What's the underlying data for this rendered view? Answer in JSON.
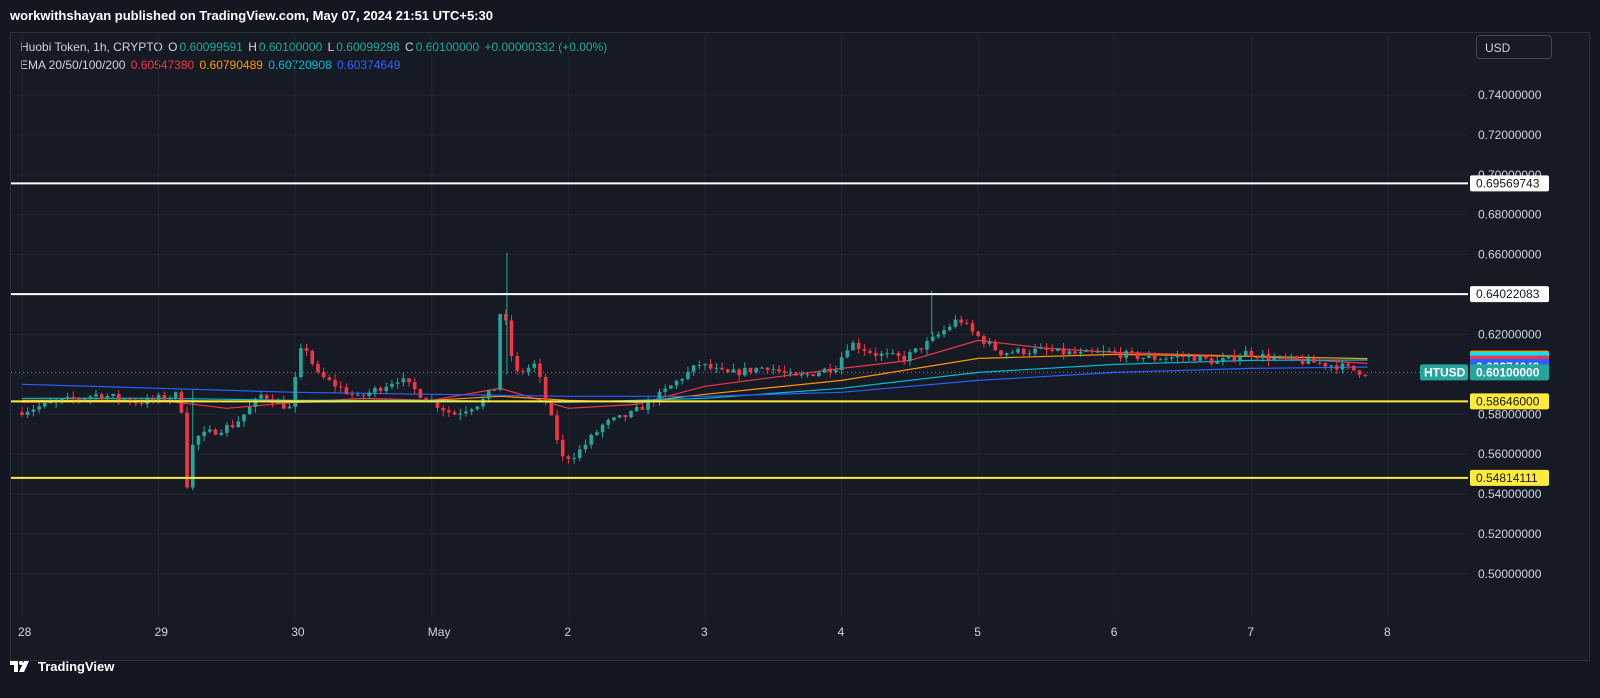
{
  "header": {
    "published_line": "workwithshayan published on TradingView.com, May 07, 2024 21:51 UTC+5:30"
  },
  "legend": {
    "symbol_line": "Huobi Token, 1h, CRYPTO",
    "o_label": "O",
    "o_value": "0.60099591",
    "h_label": "H",
    "h_value": "0.60100000",
    "l_label": "L",
    "l_value": "0.60099298",
    "c_label": "C",
    "c_value": "0.60100000",
    "change": "+0.00000332 (+0.00%)",
    "ema_label": "EMA 20/50/100/200",
    "ema20": "0.60547380",
    "ema50": "0.60790489",
    "ema100": "0.60720908",
    "ema200": "0.60374649"
  },
  "currency_button": "USD",
  "footer": {
    "brand": "TradingView"
  },
  "colors": {
    "background": "#131722",
    "up": "#26a69a",
    "down": "#f23645",
    "ema20": "#f23645",
    "ema50": "#ff9800",
    "ema100": "#00bcd4",
    "ema200": "#2962ff",
    "resistance": "#ffffff",
    "support": "#ffeb3b"
  },
  "chart_data": {
    "type": "candlestick",
    "symbol": "HTUSD",
    "y_ticks": [
      "0.74000000",
      "0.72000000",
      "0.70000000",
      "0.68000000",
      "0.66000000",
      "0.64000000",
      "0.62000000",
      "0.60000000",
      "0.58000000",
      "0.56000000",
      "0.54000000",
      "0.52000000",
      "0.50000000"
    ],
    "y_tick_values": [
      0.74,
      0.72,
      0.7,
      0.68,
      0.66,
      0.64,
      0.62,
      0.6,
      0.58,
      0.56,
      0.54,
      0.52,
      0.5
    ],
    "x_ticks": [
      "28",
      "29",
      "30",
      "May",
      "2",
      "3",
      "4",
      "5",
      "6",
      "7",
      "8"
    ],
    "x_tick_days": [
      0,
      1,
      2,
      3,
      4,
      5,
      6,
      7,
      8,
      9,
      10
    ],
    "x_range_days": [
      -0.05,
      10.9
    ],
    "ylim": [
      0.48,
      0.78
    ],
    "horizontal_lines": [
      {
        "value": 0.69569743,
        "label": "0.69569743",
        "color": "#ffffff"
      },
      {
        "value": 0.64022083,
        "label": "0.64022083",
        "color": "#ffffff"
      },
      {
        "value": 0.58646,
        "label": "0.58646000",
        "color": "#ffeb3b"
      },
      {
        "value": 0.54814111,
        "label": "0.54814111",
        "color": "#ffeb3b"
      }
    ],
    "price_labels": [
      {
        "value": 0.60790489,
        "label": "0.60790489",
        "color": "#ff9800",
        "text_color": "#ffffff"
      },
      {
        "value": 0.60720908,
        "label": "0.60720908",
        "color": "#00e5ff",
        "text_color": "#131722"
      },
      {
        "value": 0.6054738,
        "label": "0.60547380",
        "color": "#f23645",
        "text_color": "#ffffff"
      },
      {
        "value": 0.60374649,
        "label": "0.60374649",
        "color": "#2962ff",
        "text_color": "#ffffff"
      },
      {
        "value": 0.601,
        "label": "0.60100000",
        "color": "#26a69a",
        "text_color": "#ffffff",
        "symbol": "HTUSD"
      }
    ],
    "series": [
      {
        "name": "price",
        "points": [
          [
            0.0,
            0.581
          ],
          [
            0.3,
            0.586
          ],
          [
            0.6,
            0.59
          ],
          [
            0.9,
            0.586
          ],
          [
            1.2,
            0.59
          ],
          [
            1.25,
            0.545
          ],
          [
            1.3,
            0.568
          ],
          [
            1.6,
            0.575
          ],
          [
            1.8,
            0.59
          ],
          [
            2.0,
            0.583
          ],
          [
            2.1,
            0.617
          ],
          [
            2.2,
            0.6
          ],
          [
            2.5,
            0.588
          ],
          [
            2.8,
            0.598
          ],
          [
            3.0,
            0.588
          ],
          [
            3.2,
            0.58
          ],
          [
            3.4,
            0.586
          ],
          [
            3.5,
            0.593
          ],
          [
            3.55,
            0.638
          ],
          [
            3.65,
            0.6
          ],
          [
            3.8,
            0.605
          ],
          [
            4.0,
            0.558
          ],
          [
            4.1,
            0.56
          ],
          [
            4.3,
            0.575
          ],
          [
            4.5,
            0.58
          ],
          [
            4.7,
            0.589
          ],
          [
            4.9,
            0.6
          ],
          [
            5.0,
            0.605
          ],
          [
            5.2,
            0.6
          ],
          [
            5.5,
            0.604
          ],
          [
            5.7,
            0.598
          ],
          [
            6.0,
            0.604
          ],
          [
            6.1,
            0.616
          ],
          [
            6.3,
            0.61
          ],
          [
            6.5,
            0.608
          ],
          [
            6.7,
            0.617
          ],
          [
            6.9,
            0.628
          ],
          [
            7.0,
            0.621
          ],
          [
            7.2,
            0.611
          ],
          [
            7.5,
            0.612
          ],
          [
            7.8,
            0.61
          ],
          [
            8.0,
            0.611
          ],
          [
            8.3,
            0.608
          ],
          [
            8.6,
            0.609
          ],
          [
            8.8,
            0.606
          ],
          [
            9.0,
            0.611
          ],
          [
            9.2,
            0.608
          ],
          [
            9.5,
            0.606
          ],
          [
            9.7,
            0.604
          ],
          [
            9.85,
            0.601
          ]
        ]
      },
      {
        "name": "EMA 20",
        "points": [
          [
            0,
            0.586
          ],
          [
            1,
            0.587
          ],
          [
            1.5,
            0.583
          ],
          [
            2,
            0.586
          ],
          [
            2.5,
            0.588
          ],
          [
            3,
            0.587
          ],
          [
            3.5,
            0.593
          ],
          [
            4,
            0.583
          ],
          [
            4.5,
            0.585
          ],
          [
            5,
            0.594
          ],
          [
            6,
            0.603
          ],
          [
            6.5,
            0.607
          ],
          [
            7,
            0.617
          ],
          [
            7.5,
            0.613
          ],
          [
            8,
            0.611
          ],
          [
            9,
            0.609
          ],
          [
            9.85,
            0.6055
          ]
        ]
      },
      {
        "name": "EMA 50",
        "points": [
          [
            0,
            0.587
          ],
          [
            1,
            0.587
          ],
          [
            2,
            0.586
          ],
          [
            3,
            0.587
          ],
          [
            3.5,
            0.589
          ],
          [
            4,
            0.587
          ],
          [
            4.5,
            0.586
          ],
          [
            5,
            0.59
          ],
          [
            6,
            0.597
          ],
          [
            7,
            0.608
          ],
          [
            8,
            0.61
          ],
          [
            9,
            0.609
          ],
          [
            9.85,
            0.6079
          ]
        ]
      },
      {
        "name": "EMA 100",
        "points": [
          [
            0,
            0.588
          ],
          [
            1,
            0.588
          ],
          [
            2,
            0.587
          ],
          [
            3,
            0.587
          ],
          [
            4,
            0.586
          ],
          [
            5,
            0.588
          ],
          [
            6,
            0.593
          ],
          [
            7,
            0.601
          ],
          [
            8,
            0.605
          ],
          [
            9,
            0.607
          ],
          [
            9.85,
            0.6072
          ]
        ]
      },
      {
        "name": "EMA 200",
        "points": [
          [
            0,
            0.595
          ],
          [
            1,
            0.593
          ],
          [
            2,
            0.591
          ],
          [
            3,
            0.59
          ],
          [
            4,
            0.589
          ],
          [
            5,
            0.589
          ],
          [
            6,
            0.591
          ],
          [
            7,
            0.597
          ],
          [
            8,
            0.601
          ],
          [
            9,
            0.603
          ],
          [
            9.85,
            0.6037
          ]
        ]
      }
    ]
  }
}
